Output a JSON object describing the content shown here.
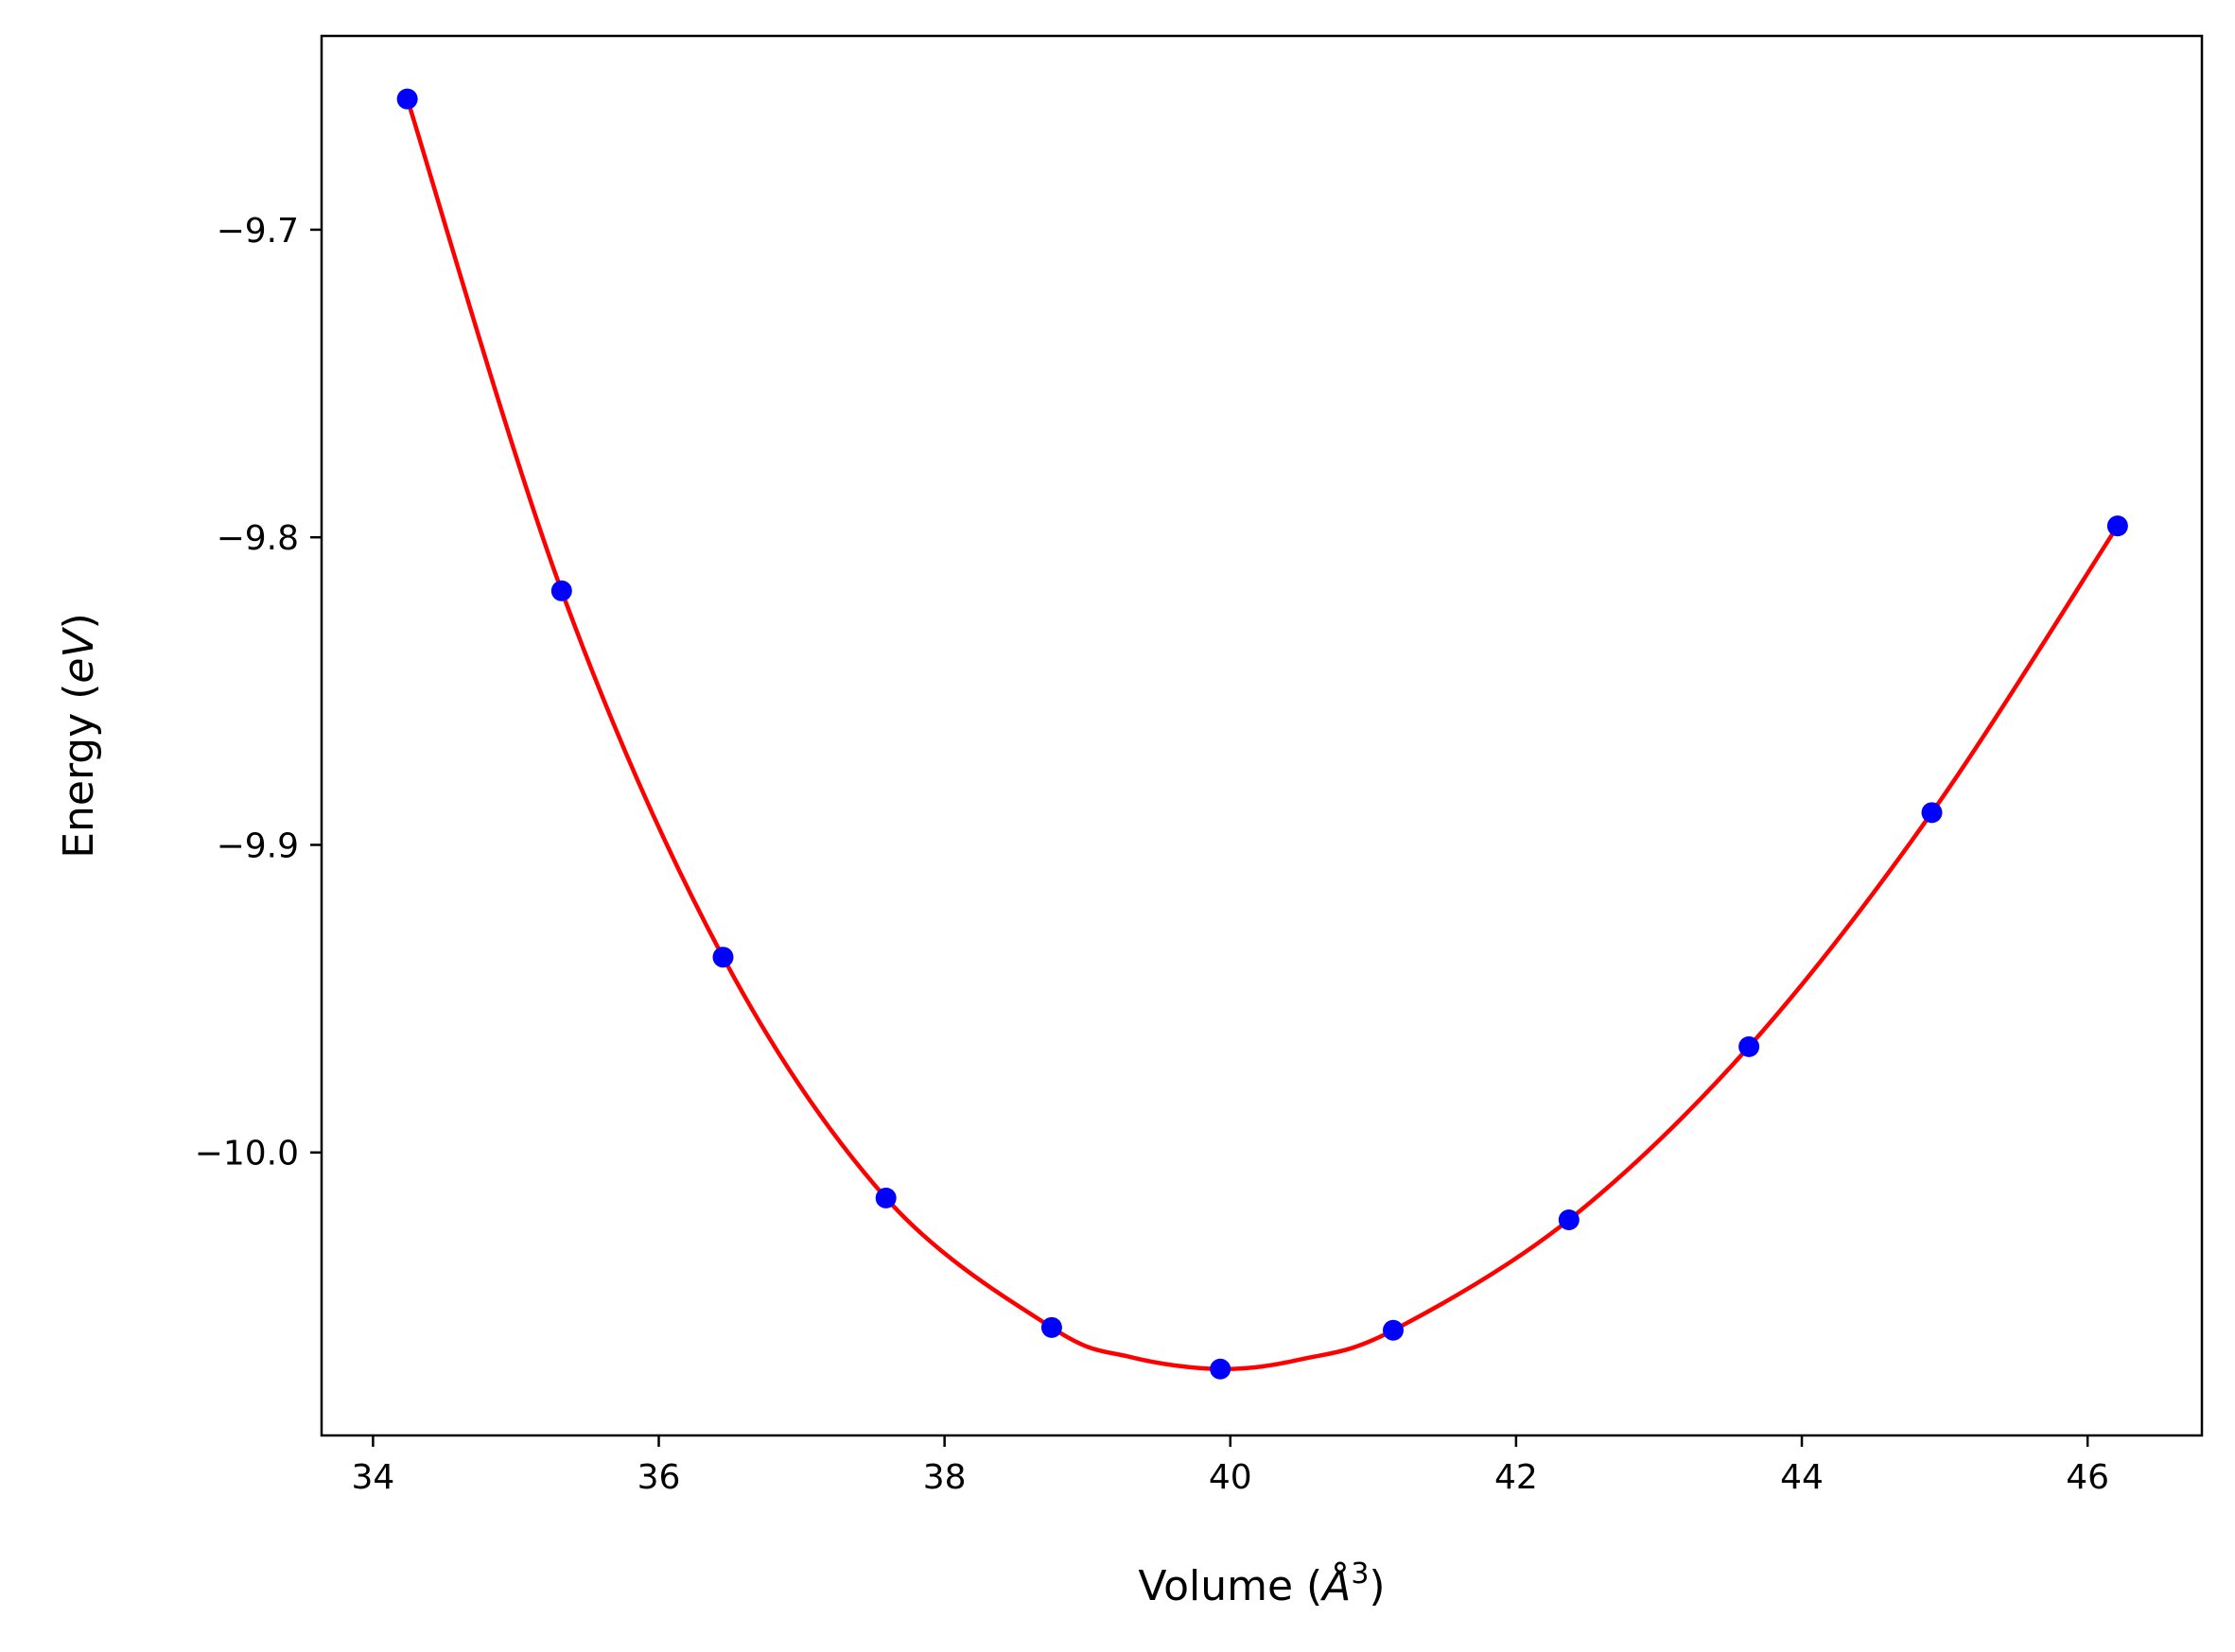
{
  "chart_data": {
    "type": "scatter",
    "title": "",
    "xlabel": "Volume (Å³)",
    "ylabel": "Energy (eV)",
    "xlabel_parts": {
      "prefix": "Volume (",
      "symbol": "Å",
      "exponent": "3",
      "suffix": ")"
    },
    "ylabel_parts": {
      "prefix": "Energy (",
      "unit": "eV",
      "suffix": ")"
    },
    "xlim": [
      33.64,
      46.8
    ],
    "ylim": [
      -10.092,
      -9.637
    ],
    "grid": false,
    "x_ticks": [
      34,
      36,
      38,
      40,
      42,
      44,
      46
    ],
    "x_tick_labels": [
      "34",
      "36",
      "38",
      "40",
      "42",
      "44",
      "46"
    ],
    "y_ticks": [
      -9.7,
      -9.8,
      -9.9,
      -10.0
    ],
    "y_tick_labels": [
      "−9.7",
      "−9.8",
      "−9.9",
      "−10.0"
    ],
    "series": [
      {
        "kind": "points",
        "color": "#0000ff",
        "x": [
          34.24,
          35.32,
          36.45,
          37.59,
          38.75,
          39.93,
          41.14,
          42.37,
          43.63,
          44.91,
          46.21
        ],
        "y": [
          -9.6575,
          -9.8174,
          -9.9365,
          -10.0148,
          -10.0569,
          -10.0704,
          -10.0578,
          -10.0219,
          -9.9656,
          -9.8895,
          -9.7963
        ]
      },
      {
        "kind": "fit-curve",
        "color": "#ff0000",
        "x": [
          34.24,
          35.32,
          36.45,
          37.59,
          38.75,
          39.3,
          39.93,
          40.5,
          41.14,
          42.37,
          43.63,
          44.91,
          46.21
        ],
        "y": [
          -9.6575,
          -9.8174,
          -9.9365,
          -10.0148,
          -10.0569,
          -10.0665,
          -10.0704,
          -10.0672,
          -10.0578,
          -10.0219,
          -9.9656,
          -9.8895,
          -9.7963
        ]
      }
    ]
  }
}
